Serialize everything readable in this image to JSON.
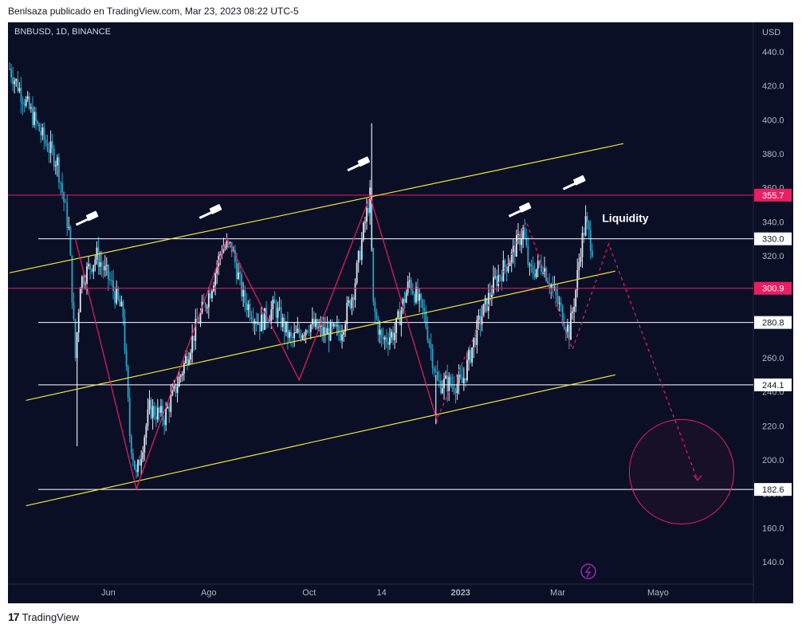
{
  "header": {
    "publisher_text": "Benlsaza publicado en TradingView.com, Mar 23, 2023 08:22 UTC-5"
  },
  "symbol_label": "BNBUSD, 1D, BINANCE",
  "footer": {
    "brand": "TradingView",
    "logo_glyph": "17"
  },
  "chart_data": {
    "type": "candlestick",
    "title": "",
    "symbol": "BNBUSD",
    "timeframe": "1D",
    "exchange": "BINANCE",
    "currency_label": "USD",
    "ylim": [
      130,
      450
    ],
    "y_ticks": [
      140,
      160,
      180,
      200,
      220,
      240,
      260,
      280,
      300,
      320,
      340,
      360,
      380,
      400,
      420,
      440
    ],
    "y_tick_labels": [
      "140.0",
      "160.0",
      "180.0",
      "200.0",
      "220.0",
      "240.0",
      "260.0",
      "280.0",
      "300.0",
      "320.0",
      "340.0",
      "360.0",
      "380.0",
      "400.0",
      "420.0",
      "440.0"
    ],
    "x_tick_labels": [
      "Jun",
      "Ago",
      "Oct",
      "14",
      "2023",
      "Mar",
      "Mayo"
    ],
    "x_tick_dates": [
      "2022-06-01",
      "2022-08-01",
      "2022-10-01",
      "2022-11-14",
      "2023-01-01",
      "2023-03-01",
      "2023-05-01"
    ],
    "x_range": [
      "2022-04-02",
      "2023-06-25"
    ],
    "price_series": [
      {
        "date": "2022-04-02",
        "close": 430
      },
      {
        "date": "2022-04-12",
        "close": 410
      },
      {
        "date": "2022-04-22",
        "close": 390
      },
      {
        "date": "2022-05-01",
        "close": 375
      },
      {
        "date": "2022-05-08",
        "close": 335
      },
      {
        "date": "2022-05-12",
        "close": 260
      },
      {
        "date": "2022-05-15",
        "close": 305
      },
      {
        "date": "2022-05-25",
        "close": 320
      },
      {
        "date": "2022-06-02",
        "close": 305
      },
      {
        "date": "2022-06-10",
        "close": 285
      },
      {
        "date": "2022-06-14",
        "close": 215
      },
      {
        "date": "2022-06-18",
        "close": 190
      },
      {
        "date": "2022-06-26",
        "close": 230
      },
      {
        "date": "2022-07-05",
        "close": 225
      },
      {
        "date": "2022-07-15",
        "close": 250
      },
      {
        "date": "2022-07-25",
        "close": 280
      },
      {
        "date": "2022-08-02",
        "close": 300
      },
      {
        "date": "2022-08-09",
        "close": 325
      },
      {
        "date": "2022-08-15",
        "close": 325
      },
      {
        "date": "2022-08-22",
        "close": 295
      },
      {
        "date": "2022-09-01",
        "close": 280
      },
      {
        "date": "2022-09-10",
        "close": 290
      },
      {
        "date": "2022-09-20",
        "close": 270
      },
      {
        "date": "2022-10-01",
        "close": 280
      },
      {
        "date": "2022-10-10",
        "close": 275
      },
      {
        "date": "2022-10-20",
        "close": 275
      },
      {
        "date": "2022-10-28",
        "close": 300
      },
      {
        "date": "2022-11-04",
        "close": 340
      },
      {
        "date": "2022-11-07",
        "close": 355
      },
      {
        "date": "2022-11-09",
        "close": 290
      },
      {
        "date": "2022-11-14",
        "close": 270
      },
      {
        "date": "2022-11-22",
        "close": 275
      },
      {
        "date": "2022-12-01",
        "close": 305
      },
      {
        "date": "2022-12-10",
        "close": 285
      },
      {
        "date": "2022-12-15",
        "close": 260
      },
      {
        "date": "2022-12-18",
        "close": 245
      },
      {
        "date": "2022-12-25",
        "close": 245
      },
      {
        "date": "2023-01-02",
        "close": 245
      },
      {
        "date": "2023-01-12",
        "close": 280
      },
      {
        "date": "2023-01-22",
        "close": 305
      },
      {
        "date": "2023-02-01",
        "close": 320
      },
      {
        "date": "2023-02-08",
        "close": 335
      },
      {
        "date": "2023-02-12",
        "close": 310
      },
      {
        "date": "2023-02-20",
        "close": 315
      },
      {
        "date": "2023-02-28",
        "close": 295
      },
      {
        "date": "2023-03-08",
        "close": 275
      },
      {
        "date": "2023-03-12",
        "close": 300
      },
      {
        "date": "2023-03-15",
        "close": 325
      },
      {
        "date": "2023-03-18",
        "close": 340
      },
      {
        "date": "2023-03-22",
        "close": 325
      }
    ],
    "spikes": [
      {
        "date": "2022-05-13",
        "low": 208
      },
      {
        "date": "2022-11-08",
        "high": 398
      },
      {
        "date": "2022-12-17",
        "low": 221
      }
    ],
    "horizontal_levels": [
      {
        "price": 355.7,
        "label": "355.7",
        "color": "#e91e63"
      },
      {
        "price": 330.0,
        "label": "330.0",
        "color": "#ffffff"
      },
      {
        "price": 300.9,
        "label": "300.9",
        "color": "#e91e63"
      },
      {
        "price": 280.8,
        "label": "280.8",
        "color": "#ffffff"
      },
      {
        "price": 244.1,
        "label": "244.1",
        "color": "#ffffff"
      },
      {
        "price": 182.6,
        "label": "182.6",
        "color": "#ffffff"
      }
    ],
    "trend_lines": [
      {
        "start": {
          "date": "2022-04-02",
          "price": 310
        },
        "end": {
          "date": "2023-04-10",
          "price": 386
        },
        "color": "#f0e442"
      },
      {
        "start": {
          "date": "2022-04-12",
          "price": 235
        },
        "end": {
          "date": "2023-04-05",
          "price": 311
        },
        "color": "#f0e442"
      },
      {
        "start": {
          "date": "2022-04-12",
          "price": 173
        },
        "end": {
          "date": "2023-04-05",
          "price": 250
        },
        "color": "#f0e442"
      }
    ],
    "zigzag": {
      "color": "#e91e63",
      "points": [
        {
          "date": "2022-05-12",
          "price": 330
        },
        {
          "date": "2022-06-18",
          "price": 183
        },
        {
          "date": "2022-08-12",
          "price": 330
        },
        {
          "date": "2022-09-25",
          "price": 247
        },
        {
          "date": "2022-11-07",
          "price": 355
        },
        {
          "date": "2022-12-18",
          "price": 222
        }
      ]
    },
    "projection_path": {
      "color": "#e91e63",
      "points": [
        {
          "date": "2022-12-18",
          "price": 225
        },
        {
          "date": "2023-02-10",
          "price": 340
        },
        {
          "date": "2023-03-10",
          "price": 265
        },
        {
          "date": "2023-04-01",
          "price": 327
        },
        {
          "date": "2023-05-25",
          "price": 188
        }
      ]
    },
    "target_zone": {
      "date": "2023-05-25",
      "price": 193,
      "radius_price": 27,
      "color": "#e91e63"
    },
    "annotations": [
      {
        "text": "Liquidity",
        "date": "2023-03-28",
        "price": 340
      }
    ],
    "gavel_markers": [
      {
        "date": "2022-05-18",
        "price": 340
      },
      {
        "date": "2022-08-01",
        "price": 344
      },
      {
        "date": "2022-10-30",
        "price": 372
      },
      {
        "date": "2023-02-05",
        "price": 345
      },
      {
        "date": "2023-03-10",
        "price": 361
      }
    ]
  }
}
